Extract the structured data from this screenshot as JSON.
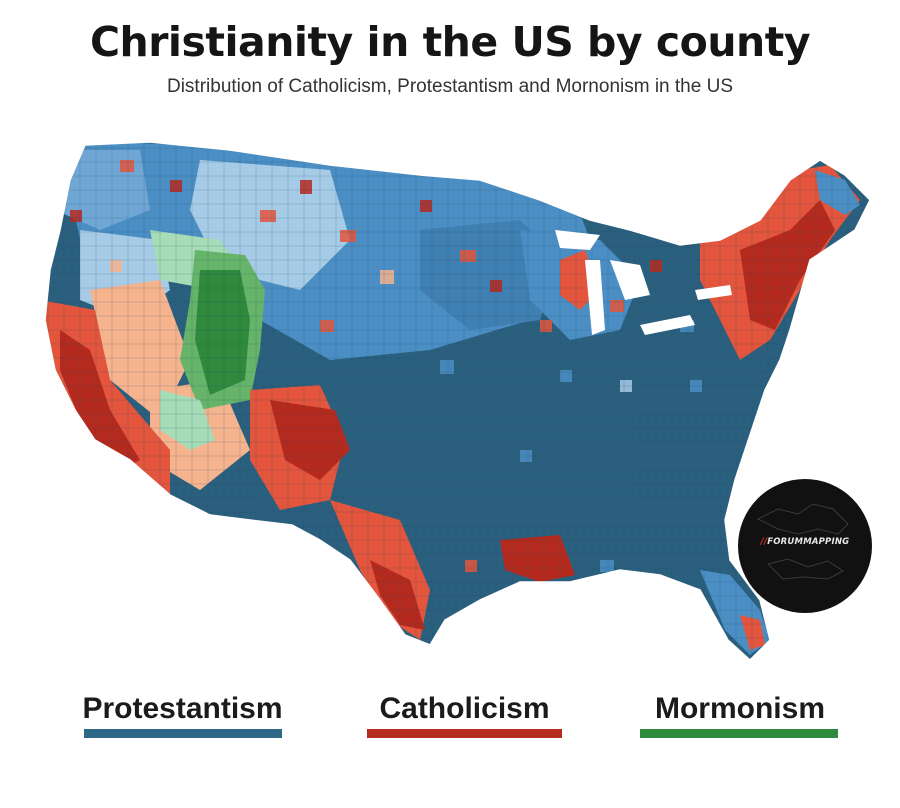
{
  "header": {
    "title": "Christianity in the US by county",
    "subtitle": "Distribution of Catholicism, Protestantism and Mornonism in the US"
  },
  "badge": {
    "slash": "//",
    "text": "FORUMMAPPING"
  },
  "legend": [
    {
      "label": "Protestantism",
      "color": "#2e6887"
    },
    {
      "label": "Catholicism",
      "color": "#b42b20"
    },
    {
      "label": "Mormonism",
      "color": "#2f8a3e"
    }
  ],
  "palette": {
    "protestant_dark": "#2b5f7e",
    "protestant_mid": "#4b8ec4",
    "protestant_light": "#a6cbe7",
    "catholic_dark": "#b52a1f",
    "catholic_mid": "#e3553d",
    "catholic_light": "#f6b48e",
    "mormon_dark": "#2f8a3e",
    "mormon_mid": "#66b46a",
    "mormon_light": "#a6dcb8"
  }
}
